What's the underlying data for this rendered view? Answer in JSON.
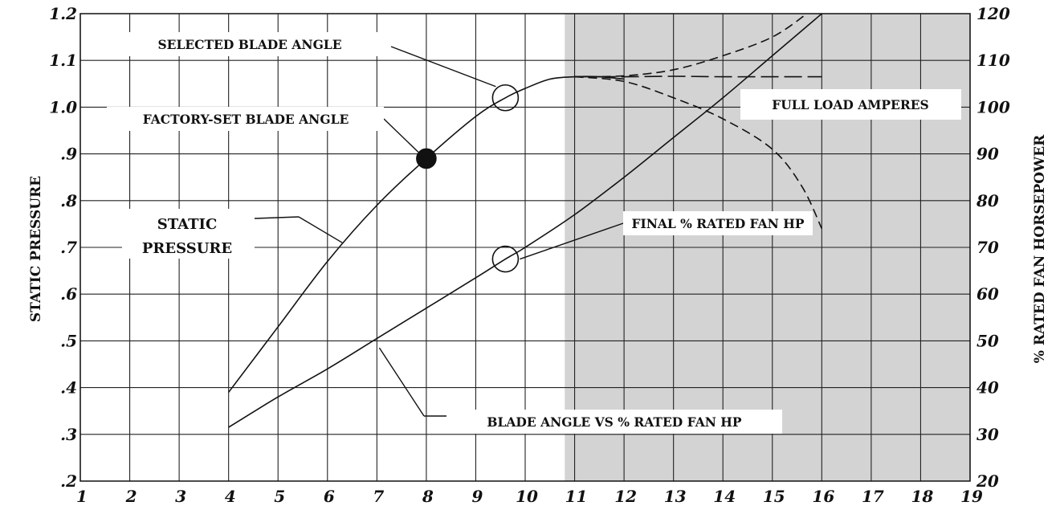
{
  "chart_data": {
    "type": "line",
    "title": "",
    "xlabel": "",
    "ylabel_left": "STATIC PRESSURE",
    "ylabel_right": "% RATED FAN HORSEPOWER",
    "xlim": [
      1,
      19
    ],
    "ylim_left": [
      0.2,
      1.2
    ],
    "ylim_right": [
      20,
      120
    ],
    "x_ticks": [
      "1",
      "2",
      "3",
      "4",
      "5",
      "6",
      "7",
      "8",
      "9",
      "10",
      "11",
      "12",
      "13",
      "14",
      "15",
      "16",
      "17",
      "18",
      "19"
    ],
    "y_left_ticks": [
      {
        "v": 0.2,
        "t": ".2"
      },
      {
        "v": 0.3,
        "t": ".3"
      },
      {
        "v": 0.4,
        "t": ".4"
      },
      {
        "v": 0.5,
        "t": ".5"
      },
      {
        "v": 0.6,
        "t": ".6"
      },
      {
        "v": 0.7,
        "t": ".7"
      },
      {
        "v": 0.8,
        "t": ".8"
      },
      {
        "v": 0.9,
        "t": ".9"
      },
      {
        "v": 1.0,
        "t": "1.0"
      },
      {
        "v": 1.1,
        "t": "1.1"
      },
      {
        "v": 1.2,
        "t": "1.2"
      }
    ],
    "y_right_ticks": [
      "20",
      "30",
      "40",
      "50",
      "60",
      "70",
      "80",
      "90",
      "100",
      "110",
      "120"
    ],
    "grid": true,
    "shaded_region": {
      "x_from": 10.8,
      "x_to": 19,
      "color": "#d3d3d4"
    },
    "series": [
      {
        "name": "STATIC PRESSURE",
        "style": "solid",
        "axis": "left",
        "points": [
          [
            4,
            0.39
          ],
          [
            5,
            0.53
          ],
          [
            6,
            0.67
          ],
          [
            7,
            0.79
          ],
          [
            8,
            0.89
          ],
          [
            9,
            0.98
          ],
          [
            9.6,
            1.02
          ],
          [
            10,
            1.04
          ],
          [
            10.5,
            1.06
          ],
          [
            11,
            1.065
          ],
          [
            11.5,
            1.065
          ],
          [
            12,
            1.06
          ]
        ]
      },
      {
        "name": "BLADE ANGLE VS % RATED FAN HP",
        "style": "solid",
        "axis": "right",
        "points": [
          [
            4,
            31.5
          ],
          [
            5,
            38
          ],
          [
            6,
            44
          ],
          [
            7,
            50.5
          ],
          [
            8,
            57
          ],
          [
            9,
            63.5
          ],
          [
            9.6,
            67.5
          ],
          [
            10,
            70
          ],
          [
            11,
            77
          ],
          [
            12,
            85
          ],
          [
            13,
            93.5
          ],
          [
            14,
            102
          ],
          [
            15,
            111
          ],
          [
            16,
            120
          ]
        ]
      },
      {
        "name": "",
        "style": "dashed",
        "axis": "left",
        "points": [
          [
            11,
            1.065
          ],
          [
            12,
            1.067
          ],
          [
            13,
            1.08
          ],
          [
            14,
            1.11
          ],
          [
            15,
            1.15
          ],
          [
            15.7,
            1.2
          ]
        ]
      },
      {
        "name": "",
        "style": "dashed",
        "axis": "left",
        "points": [
          [
            11,
            1.065
          ],
          [
            12,
            1.065
          ],
          [
            13,
            1.066
          ],
          [
            14,
            1.065
          ],
          [
            15,
            1.065
          ],
          [
            16,
            1.065
          ]
        ]
      },
      {
        "name": "",
        "style": "dashed",
        "axis": "left",
        "points": [
          [
            11,
            1.065
          ],
          [
            12,
            1.055
          ],
          [
            13,
            1.02
          ],
          [
            14,
            0.975
          ],
          [
            15,
            0.91
          ],
          [
            15.6,
            0.83
          ],
          [
            16,
            0.74
          ]
        ]
      }
    ],
    "markers": [
      {
        "name": "factory-set-blade-angle-marker",
        "x": 8,
        "y": 0.89,
        "axis": "left",
        "filled": true
      },
      {
        "name": "selected-blade-angle-marker",
        "x": 9.6,
        "y": 1.02,
        "axis": "left",
        "filled": false
      },
      {
        "name": "final-rated-fan-hp-marker",
        "x": 9.6,
        "y": 67.5,
        "axis": "right",
        "filled": false
      }
    ],
    "annotations": {
      "selected_blade_angle": "SELECTED BLADE ANGLE",
      "factory_set_blade_angle": "FACTORY-SET BLADE ANGLE",
      "static_pressure_line1": "STATIC",
      "static_pressure_line2": "PRESSURE",
      "full_load_amperes": "FULL LOAD AMPERES",
      "final_rated_fan_hp": "FINAL % RATED FAN HP",
      "blade_angle_vs_hp": "BLADE ANGLE VS % RATED FAN HP"
    }
  }
}
